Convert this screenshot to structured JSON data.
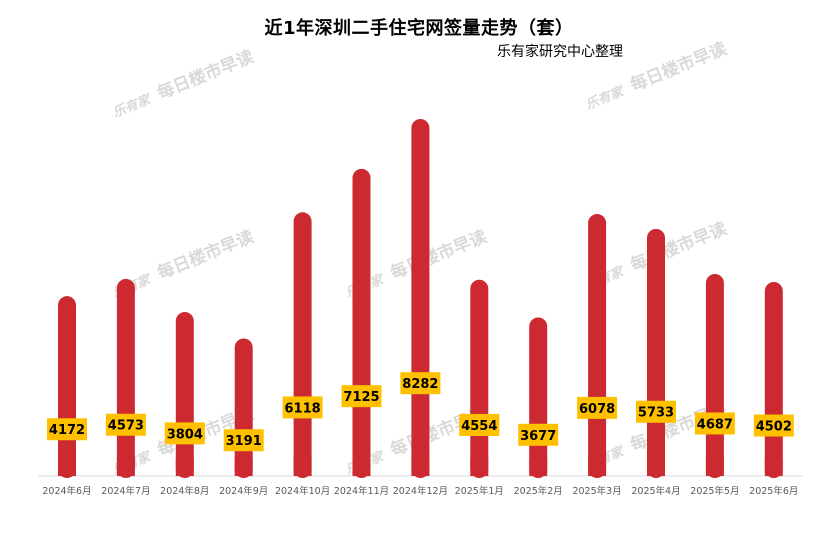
{
  "chart_data": {
    "type": "bar",
    "title": "近1年深圳二手住宅网签量走势（套）",
    "subtitle": "乐有家研究中心整理",
    "categories": [
      "2024年6月",
      "2024年7月",
      "2024年8月",
      "2024年9月",
      "2024年10月",
      "2024年11月",
      "2024年12月",
      "2025年1月",
      "2025年2月",
      "2025年3月",
      "2025年4月",
      "2025年5月",
      "2025年6月"
    ],
    "values": [
      4172,
      4573,
      3804,
      3191,
      6118,
      7125,
      8282,
      4554,
      3677,
      6078,
      5733,
      4687,
      4502
    ],
    "ylim": [
      0,
      8282
    ],
    "grid": false,
    "legend": "none",
    "colors": {
      "bar": "#cc2a30",
      "label_bg": "#ffc000",
      "label_text": "#000000",
      "axis": "#d9d9d9"
    }
  },
  "watermark": {
    "logo": "乐有家",
    "text": "每日楼市早读"
  }
}
